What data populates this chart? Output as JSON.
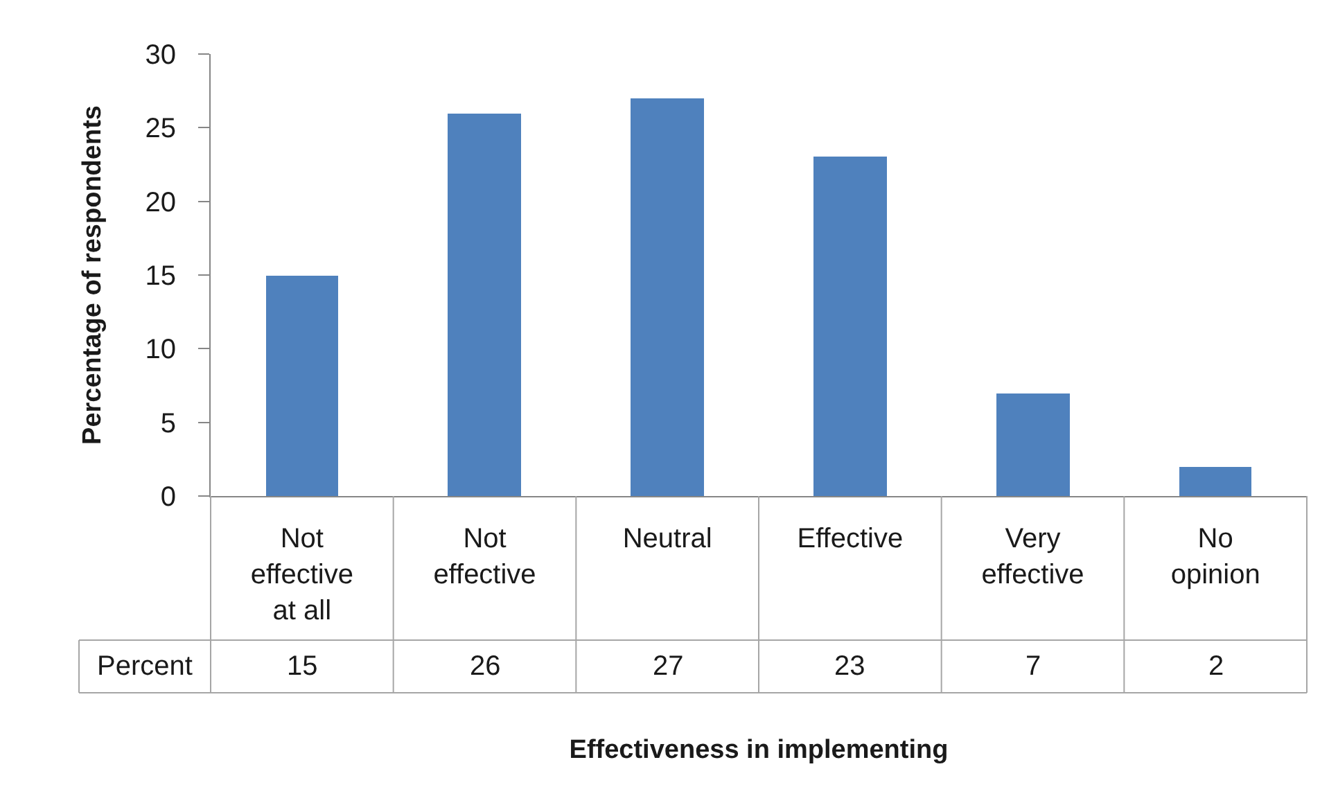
{
  "chart_data": {
    "type": "bar",
    "xlabel": "Effectiveness in implementing",
    "ylabel": "Percentage of respondents",
    "categories": [
      "Not effective at all",
      "Not effective",
      "Neutral",
      "Effective",
      "Very effective",
      "No opinion"
    ],
    "series": [
      {
        "name": "Percent",
        "color": "#4f81bd",
        "values": [
          15,
          26,
          27,
          23,
          7,
          2
        ]
      }
    ],
    "ylim": [
      0,
      30
    ],
    "yticks": [
      0,
      5,
      10,
      15,
      20,
      25,
      30
    ],
    "grid": false,
    "data_labels": true
  }
}
